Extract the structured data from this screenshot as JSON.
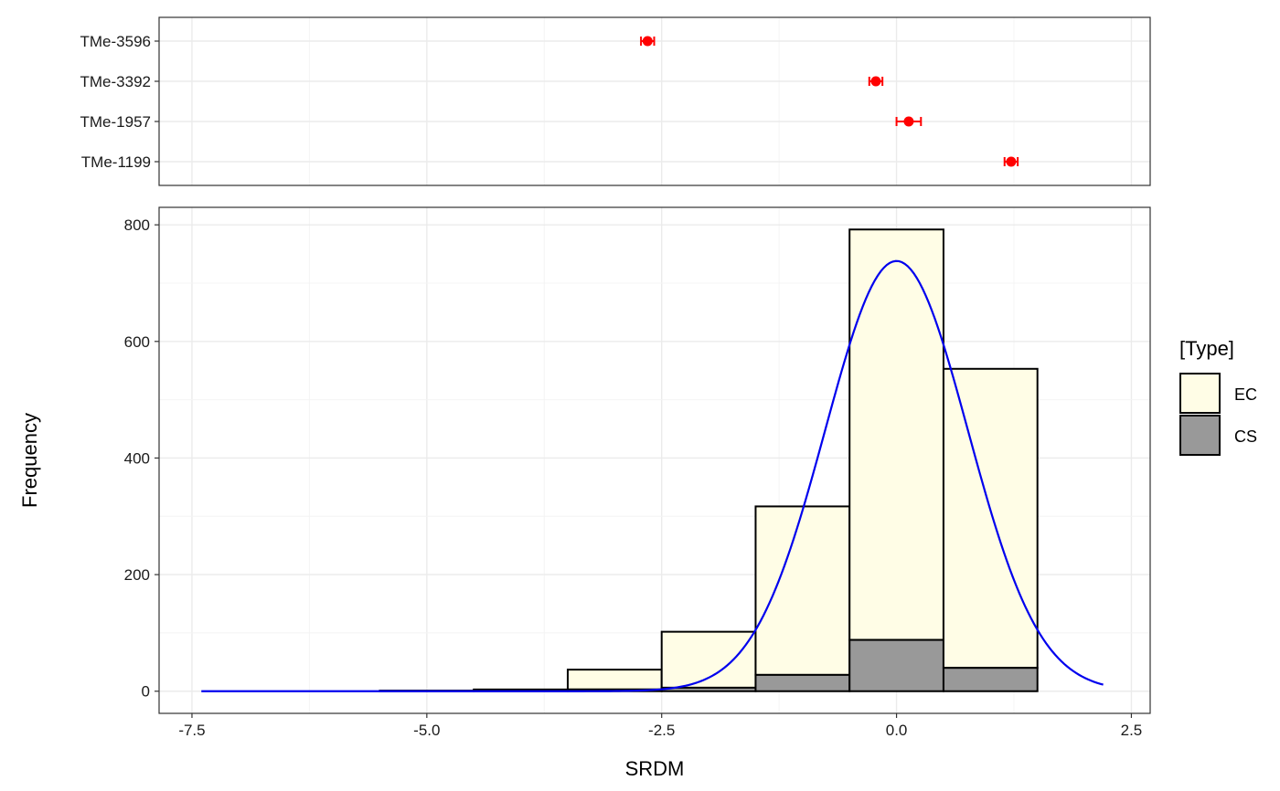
{
  "chart_data": [
    {
      "type": "scatter",
      "panel": "top",
      "title": "",
      "xlabel": "",
      "ylabel": "",
      "categories": [
        "TMe-3596",
        "TMe-3392",
        "TMe-1957",
        "TMe-1199"
      ],
      "points": [
        {
          "label": "TMe-3596",
          "x": -2.65,
          "xmin": -2.72,
          "xmax": -2.58
        },
        {
          "label": "TMe-3392",
          "x": -0.22,
          "xmin": -0.29,
          "xmax": -0.15
        },
        {
          "label": "TMe-1957",
          "x": 0.13,
          "xmin": 0.0,
          "xmax": 0.26
        },
        {
          "label": "TMe-1199",
          "x": 1.22,
          "xmin": 1.15,
          "xmax": 1.29
        }
      ],
      "xlim": [
        -7.85,
        2.7
      ],
      "grid": true,
      "point_color": "#ff0000"
    },
    {
      "type": "bar",
      "panel": "bottom",
      "title": "",
      "xlabel": "SRDM",
      "ylabel": "Frequency",
      "xlim": [
        -7.85,
        2.7
      ],
      "ylim": [
        -38,
        830
      ],
      "x_ticks": [
        -7.5,
        -5.0,
        -2.5,
        0.0,
        2.5
      ],
      "x_tick_labels": [
        "-7.5",
        "-5.0",
        "-2.5",
        "0.0",
        "2.5"
      ],
      "y_ticks": [
        0,
        200,
        400,
        600,
        800
      ],
      "y_tick_labels": [
        "0",
        "200",
        "400",
        "600",
        "800"
      ],
      "grid": true,
      "bin_width": 1.0,
      "bins": [
        {
          "x0": -7.5,
          "x1": -6.5,
          "total": 0,
          "cs": 0
        },
        {
          "x0": -6.5,
          "x1": -5.5,
          "total": 0,
          "cs": 0
        },
        {
          "x0": -5.5,
          "x1": -4.5,
          "total": 1,
          "cs": 0
        },
        {
          "x0": -4.5,
          "x1": -3.5,
          "total": 3,
          "cs": 1
        },
        {
          "x0": -3.5,
          "x1": -2.5,
          "total": 37,
          "cs": 3
        },
        {
          "x0": -2.5,
          "x1": -1.5,
          "total": 102,
          "cs": 6
        },
        {
          "x0": -1.5,
          "x1": -0.5,
          "total": 317,
          "cs": 28
        },
        {
          "x0": -0.5,
          "x1": 0.5,
          "total": 792,
          "cs": 88
        },
        {
          "x0": 0.5,
          "x1": 1.5,
          "total": 553,
          "cs": 40
        }
      ],
      "series": [
        {
          "name": "EC",
          "color": "#fffde6"
        },
        {
          "name": "CS",
          "color": "#999999"
        }
      ],
      "curve": {
        "type": "normal",
        "mean": 0.0,
        "sd": 0.76,
        "peak": 738,
        "x_from": -7.4,
        "x_to": 2.2,
        "color": "#0000ee"
      },
      "legend": {
        "title": "[Type]",
        "position": "right",
        "entries": [
          "EC",
          "CS"
        ]
      }
    }
  ]
}
